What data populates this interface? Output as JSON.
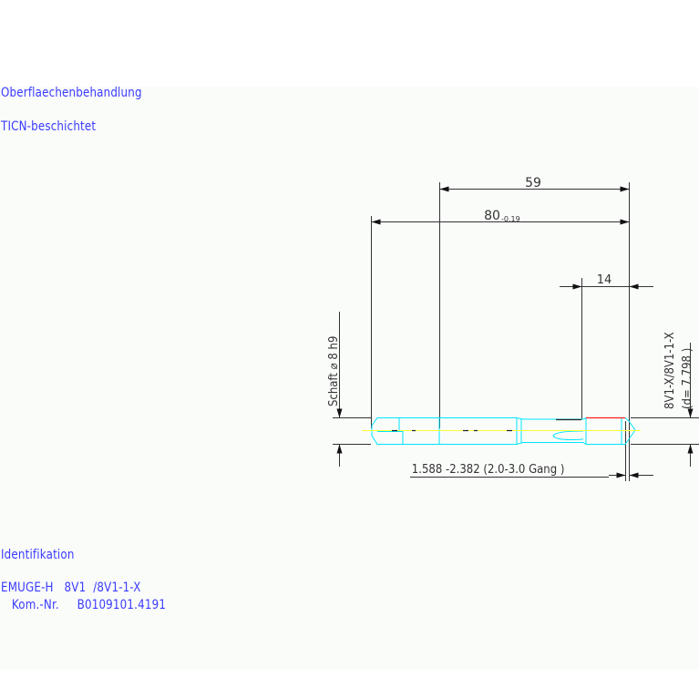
{
  "surface_treatment": {
    "heading": "Oberflaechenbehandlung",
    "value": "TICN-beschichtet"
  },
  "identification": {
    "heading": "Identifikation",
    "line1": "EMUGE-H   8V1  /8V1-1-X",
    "line2": "   Kom.-Nr.     B0109101.4191"
  },
  "dimensions": {
    "dim_59": "59",
    "dim_80": "80",
    "dim_80_tolerance": "-0.19",
    "dim_14": "14",
    "shank_label": "Schaft  ⌀ 8  h9",
    "thread_label": "8V1-X/8V1-1-X",
    "thread_diameter": "(d= 7.798 )",
    "pitch_label": "1.588  -2.382 (2.0-3.0  Gang   )"
  },
  "colors": {
    "text": "#3b3bff",
    "dimension_lines": "#333333",
    "tool_outline": "#00e5ff",
    "centerline": "#ffff33",
    "coating_edge": "#ff2020"
  }
}
